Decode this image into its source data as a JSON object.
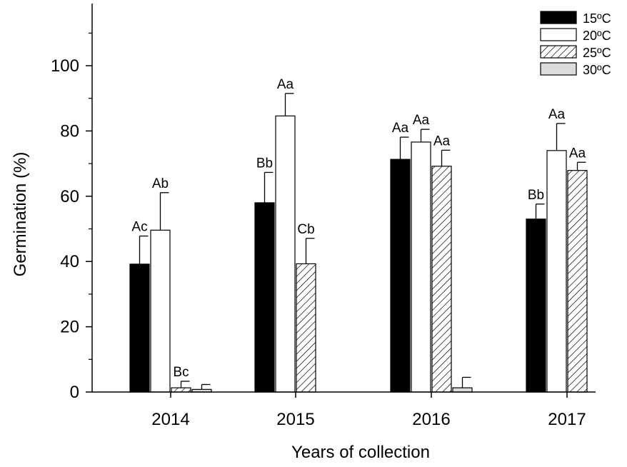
{
  "chart_data": {
    "type": "bar",
    "xlabel": "Years of collection",
    "ylabel": "Germination (%)",
    "ylim": [
      0,
      110
    ],
    "yticks": [
      0,
      20,
      40,
      60,
      80,
      100
    ],
    "categories": [
      "2014",
      "2015",
      "2016",
      "2017"
    ],
    "legend_position": "top-right",
    "series": [
      {
        "name": "15ºC",
        "fill": "black",
        "values": [
          39.2,
          58.0,
          71.3,
          53.0
        ],
        "errors": [
          8.6,
          9.3,
          6.8,
          4.6
        ],
        "labels": [
          "Ac",
          "Bb",
          "Aa",
          "Bb"
        ]
      },
      {
        "name": "20ºC",
        "fill": "white",
        "values": [
          49.6,
          84.6,
          76.6,
          74.0
        ],
        "errors": [
          11.5,
          6.9,
          3.9,
          8.3
        ],
        "labels": [
          "Ab",
          "Aa",
          "Aa",
          "Aa"
        ]
      },
      {
        "name": "25ºC",
        "fill": "hatch",
        "values": [
          1.3,
          39.3,
          69.2,
          67.9
        ],
        "errors": [
          2.0,
          7.8,
          4.9,
          2.5
        ],
        "labels": [
          "Bc",
          "Cb",
          "Aa",
          "Aa"
        ]
      },
      {
        "name": "30ºC",
        "fill": "gray",
        "values": [
          0.8,
          null,
          1.3,
          null
        ],
        "errors": [
          1.5,
          null,
          3.2,
          null
        ],
        "labels": [
          "",
          "",
          "",
          ""
        ]
      }
    ]
  },
  "colors": {
    "bar_black": "#000000",
    "bar_white": "#ffffff",
    "bar_gray": "#dcdcdc",
    "hatch_line": "#000000",
    "axis": "#000000"
  }
}
